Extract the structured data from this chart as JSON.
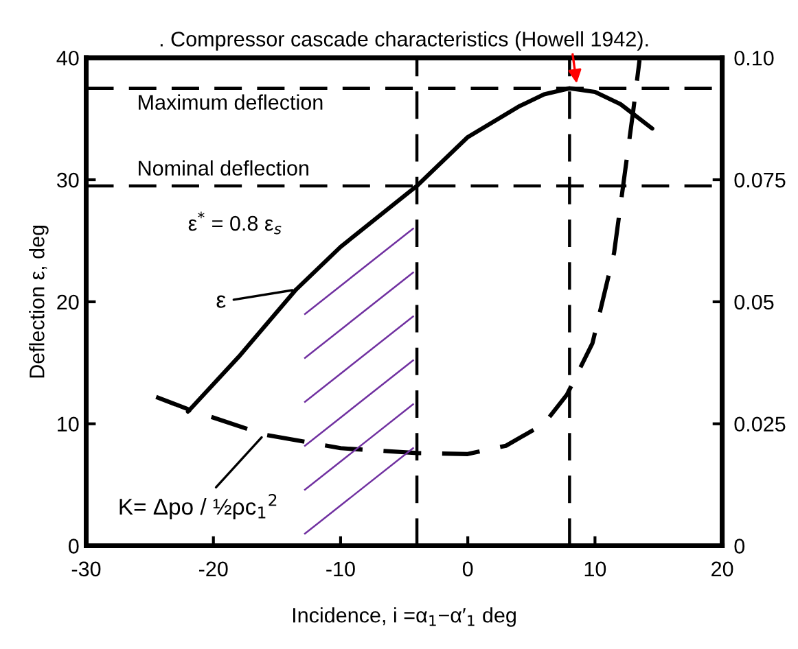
{
  "chart_data": {
    "type": "line",
    "title": ". Compressor cascade characteristics (Howell 1942).",
    "xlabel": "Incidence, i =α$_{1}$−α′$_{1}$ deg",
    "ylabel": "Deflection ε, deg",
    "xlim": [
      -30,
      20
    ],
    "xticks": [
      -30,
      -20,
      -10,
      0,
      10,
      20
    ],
    "ylim": [
      0,
      40
    ],
    "yticks": [
      0,
      10,
      20,
      30,
      40
    ],
    "y2lim": [
      0,
      0.1
    ],
    "y2ticks": [
      0,
      0.025,
      0.05,
      0.075,
      {
        "value": 0.1,
        "label": "0.10"
      }
    ],
    "grid": false,
    "series": [
      {
        "name": "ε",
        "color": "#000000",
        "line_style": "solid",
        "x": [
          -22,
          -18,
          -13.5,
          -10,
          -4,
          0,
          4,
          6,
          8,
          10,
          12,
          14.5
        ],
        "values": [
          11,
          15.5,
          21,
          24.5,
          29.5,
          33.5,
          36,
          37,
          37.5,
          37.2,
          36.2,
          34.2
        ]
      },
      {
        "name": "K= Δpo / ½ρc$_{1}$$^{2}$",
        "color": "#000000",
        "line_style": "dashed",
        "axis": "y2",
        "x": [
          -24.5,
          -22,
          -16,
          -10,
          -4,
          0,
          3,
          6,
          7.8,
          9.8,
          11.5,
          13,
          13.5
        ],
        "values": [
          0.0305,
          0.028,
          0.0228,
          0.02,
          0.019,
          0.0188,
          0.0205,
          0.025,
          0.031,
          0.0415,
          0.06,
          0.089,
          0.0995
        ]
      }
    ],
    "ref_lines": [
      {
        "axis": "y",
        "value": 37.5,
        "label": "Maximum deflection",
        "line_style": "dashed"
      },
      {
        "axis": "y",
        "value": 29.5,
        "label": "Nominal deflection",
        "line_style": "dashed"
      },
      {
        "axis": "x",
        "value": -4,
        "label": null,
        "line_style": "dashed"
      },
      {
        "axis": "x",
        "value": 8,
        "label": null,
        "line_style": "dashed"
      }
    ],
    "annotations": [
      "ε$^{*}$ = 0.8 ε$_{s}$"
    ]
  }
}
